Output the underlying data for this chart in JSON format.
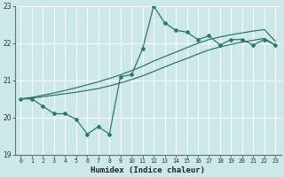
{
  "xlabel": "Humidex (Indice chaleur)",
  "ylabel": "",
  "xlim": [
    -0.5,
    23.5
  ],
  "ylim": [
    19,
    23
  ],
  "yticks": [
    19,
    20,
    21,
    22,
    23
  ],
  "xticks": [
    0,
    1,
    2,
    3,
    4,
    5,
    6,
    7,
    8,
    9,
    10,
    11,
    12,
    13,
    14,
    15,
    16,
    17,
    18,
    19,
    20,
    21,
    22,
    23
  ],
  "bg_color": "#cce8e8",
  "grid_color": "#ffffff",
  "line_color": "#2a7a6a",
  "line1_x": [
    0,
    1,
    2,
    3,
    4,
    5,
    6,
    7,
    8,
    9,
    10,
    11,
    12,
    13,
    14,
    15,
    16,
    17,
    18,
    19,
    20,
    21,
    22,
    23
  ],
  "line1_y": [
    20.5,
    20.5,
    20.3,
    20.1,
    20.1,
    19.95,
    19.55,
    19.75,
    19.55,
    21.1,
    21.15,
    21.85,
    23.0,
    22.55,
    22.35,
    22.3,
    22.1,
    22.2,
    21.95,
    22.1,
    22.1,
    21.95,
    22.1,
    21.95
  ],
  "line2_x": [
    0,
    1,
    2,
    3,
    4,
    5,
    6,
    7,
    8,
    9,
    10,
    11,
    12,
    13,
    14,
    15,
    16,
    17,
    18,
    19,
    20,
    21,
    22,
    23
  ],
  "line2_y": [
    20.5,
    20.52,
    20.56,
    20.6,
    20.64,
    20.68,
    20.73,
    20.78,
    20.85,
    20.93,
    21.02,
    21.12,
    21.24,
    21.36,
    21.48,
    21.59,
    21.71,
    21.82,
    21.9,
    21.97,
    22.03,
    22.08,
    22.13,
    21.95
  ],
  "line3_x": [
    0,
    1,
    2,
    3,
    4,
    5,
    6,
    7,
    8,
    9,
    10,
    11,
    12,
    13,
    14,
    15,
    16,
    17,
    18,
    19,
    20,
    21,
    22,
    23
  ],
  "line3_y": [
    20.5,
    20.54,
    20.6,
    20.66,
    20.73,
    20.8,
    20.88,
    20.96,
    21.05,
    21.15,
    21.26,
    21.38,
    21.52,
    21.64,
    21.76,
    21.88,
    22.0,
    22.1,
    22.17,
    22.23,
    22.28,
    22.33,
    22.37,
    22.05
  ]
}
